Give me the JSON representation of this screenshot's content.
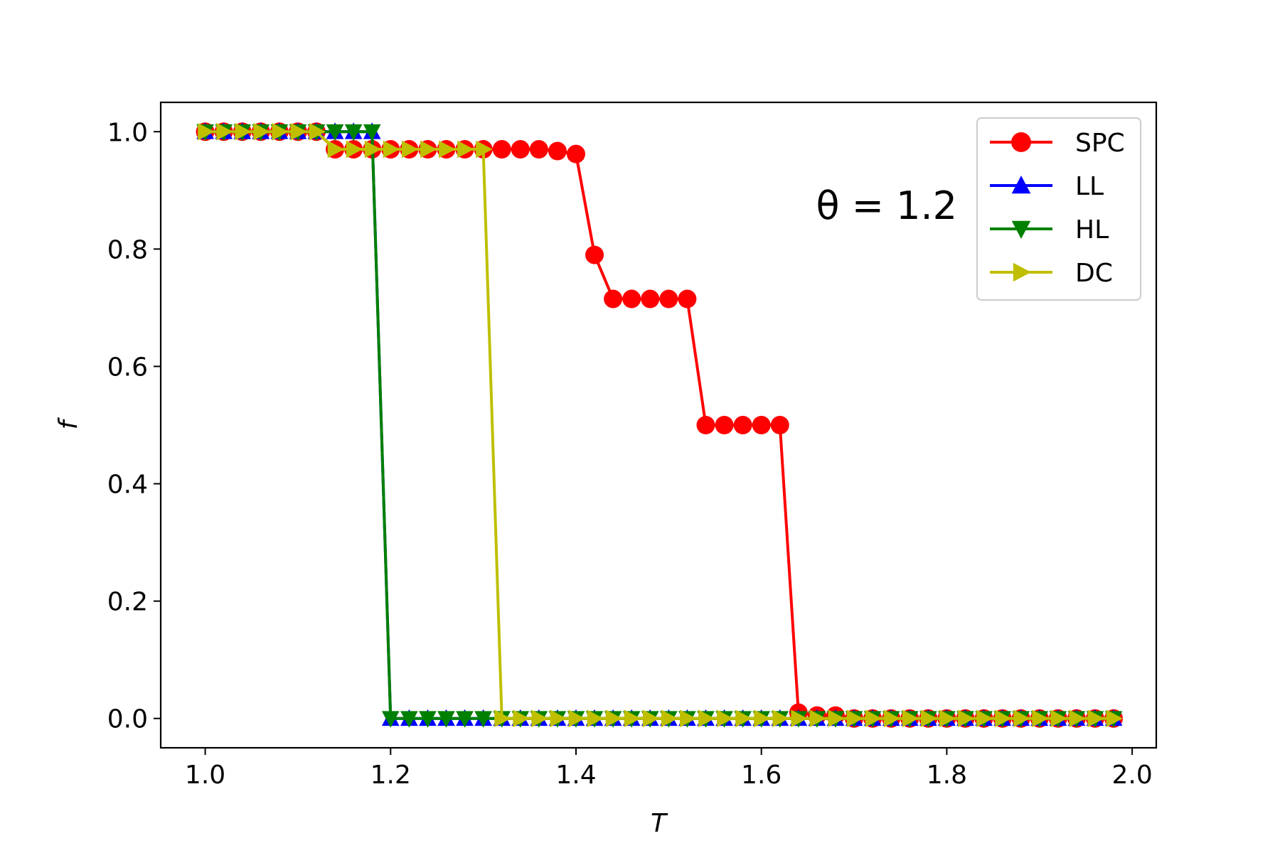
{
  "chart_data": {
    "type": "line",
    "xlabel": "T",
    "ylabel": "f",
    "xlim": [
      0.952,
      2.026
    ],
    "ylim": [
      -0.05,
      1.05
    ],
    "xticks": [
      1.0,
      1.2,
      1.4,
      1.6,
      1.8,
      2.0
    ],
    "xtick_labels": [
      "1.0",
      "1.2",
      "1.4",
      "1.6",
      "1.8",
      "2.0"
    ],
    "yticks": [
      0.0,
      0.2,
      0.4,
      0.6,
      0.8,
      1.0
    ],
    "ytick_labels": [
      "0.0",
      "0.2",
      "0.4",
      "0.6",
      "0.8",
      "1.0"
    ],
    "grid": false,
    "legend_position": "top-right",
    "annotation": "θ = 1.2",
    "series": [
      {
        "name": "SPC",
        "color": "#ff0000",
        "marker": "circle",
        "x": [
          1.0,
          1.02,
          1.04,
          1.06,
          1.08,
          1.1,
          1.12,
          1.14,
          1.16,
          1.18,
          1.2,
          1.22,
          1.24,
          1.26,
          1.28,
          1.3,
          1.32,
          1.34,
          1.36,
          1.38,
          1.4,
          1.42,
          1.44,
          1.46,
          1.48,
          1.5,
          1.52,
          1.54,
          1.56,
          1.58,
          1.6,
          1.62,
          1.64,
          1.66,
          1.68,
          1.7,
          1.72,
          1.74,
          1.76,
          1.78,
          1.8,
          1.82,
          1.84,
          1.86,
          1.88,
          1.9,
          1.92,
          1.94,
          1.96,
          1.98
        ],
        "y": [
          1.0,
          1.0,
          1.0,
          1.0,
          1.0,
          1.0,
          1.0,
          0.97,
          0.97,
          0.97,
          0.97,
          0.97,
          0.97,
          0.97,
          0.97,
          0.97,
          0.97,
          0.97,
          0.97,
          0.967,
          0.962,
          0.79,
          0.715,
          0.715,
          0.715,
          0.715,
          0.715,
          0.5,
          0.5,
          0.5,
          0.5,
          0.5,
          0.01,
          0.005,
          0.005,
          0.0,
          0.0,
          0.0,
          0.0,
          0.0,
          0.0,
          0.0,
          0.0,
          0.0,
          0.0,
          0.0,
          0.0,
          0.0,
          0.0,
          0.0
        ]
      },
      {
        "name": "LL",
        "color": "#0000ff",
        "marker": "triangle-up",
        "x": [
          1.0,
          1.02,
          1.04,
          1.06,
          1.08,
          1.1,
          1.12,
          1.14,
          1.16,
          1.18,
          1.2,
          1.22,
          1.24,
          1.26,
          1.28,
          1.3,
          1.32,
          1.34,
          1.36,
          1.38,
          1.4,
          1.42,
          1.44,
          1.46,
          1.48,
          1.5,
          1.52,
          1.54,
          1.56,
          1.58,
          1.6,
          1.62,
          1.64,
          1.66,
          1.68,
          1.7,
          1.72,
          1.74,
          1.76,
          1.78,
          1.8,
          1.82,
          1.84,
          1.86,
          1.88,
          1.9,
          1.92,
          1.94,
          1.96,
          1.98
        ],
        "y": [
          1.0,
          1.0,
          1.0,
          1.0,
          1.0,
          1.0,
          1.0,
          1.0,
          1.0,
          1.0,
          0.0,
          0.0,
          0.0,
          0.0,
          0.0,
          0.0,
          0.0,
          0.0,
          0.0,
          0.0,
          0.0,
          0.0,
          0.0,
          0.0,
          0.0,
          0.0,
          0.0,
          0.0,
          0.0,
          0.0,
          0.0,
          0.0,
          0.0,
          0.0,
          0.0,
          0.0,
          0.0,
          0.0,
          0.0,
          0.0,
          0.0,
          0.0,
          0.0,
          0.0,
          0.0,
          0.0,
          0.0,
          0.0,
          0.0,
          0.0
        ]
      },
      {
        "name": "HL",
        "color": "#008000",
        "marker": "triangle-down",
        "x": [
          1.0,
          1.02,
          1.04,
          1.06,
          1.08,
          1.1,
          1.12,
          1.14,
          1.16,
          1.18,
          1.2,
          1.22,
          1.24,
          1.26,
          1.28,
          1.3,
          1.32,
          1.34,
          1.36,
          1.38,
          1.4,
          1.42,
          1.44,
          1.46,
          1.48,
          1.5,
          1.52,
          1.54,
          1.56,
          1.58,
          1.6,
          1.62,
          1.64,
          1.66,
          1.68,
          1.7,
          1.72,
          1.74,
          1.76,
          1.78,
          1.8,
          1.82,
          1.84,
          1.86,
          1.88,
          1.9,
          1.92,
          1.94,
          1.96,
          1.98
        ],
        "y": [
          1.0,
          1.0,
          1.0,
          1.0,
          1.0,
          1.0,
          1.0,
          1.0,
          1.0,
          1.0,
          0.0,
          0.0,
          0.0,
          0.0,
          0.0,
          0.0,
          0.0,
          0.0,
          0.0,
          0.0,
          0.0,
          0.0,
          0.0,
          0.0,
          0.0,
          0.0,
          0.0,
          0.0,
          0.0,
          0.0,
          0.0,
          0.0,
          0.0,
          0.0,
          0.0,
          0.0,
          0.0,
          0.0,
          0.0,
          0.0,
          0.0,
          0.0,
          0.0,
          0.0,
          0.0,
          0.0,
          0.0,
          0.0,
          0.0,
          0.0
        ]
      },
      {
        "name": "DC",
        "color": "#bfbf00",
        "marker": "triangle-right",
        "x": [
          1.0,
          1.02,
          1.04,
          1.06,
          1.08,
          1.1,
          1.12,
          1.14,
          1.16,
          1.18,
          1.2,
          1.22,
          1.24,
          1.26,
          1.28,
          1.3,
          1.32,
          1.34,
          1.36,
          1.38,
          1.4,
          1.42,
          1.44,
          1.46,
          1.48,
          1.5,
          1.52,
          1.54,
          1.56,
          1.58,
          1.6,
          1.62,
          1.64,
          1.66,
          1.68,
          1.7,
          1.72,
          1.74,
          1.76,
          1.78,
          1.8,
          1.82,
          1.84,
          1.86,
          1.88,
          1.9,
          1.92,
          1.94,
          1.96,
          1.98
        ],
        "y": [
          1.0,
          1.0,
          1.0,
          1.0,
          1.0,
          1.0,
          1.0,
          0.97,
          0.97,
          0.97,
          0.97,
          0.97,
          0.97,
          0.97,
          0.97,
          0.97,
          0.0,
          0.0,
          0.0,
          0.0,
          0.0,
          0.0,
          0.0,
          0.0,
          0.0,
          0.0,
          0.0,
          0.0,
          0.0,
          0.0,
          0.0,
          0.0,
          0.0,
          0.0,
          0.0,
          0.0,
          0.0,
          0.0,
          0.0,
          0.0,
          0.0,
          0.0,
          0.0,
          0.0,
          0.0,
          0.0,
          0.0,
          0.0,
          0.0,
          0.0
        ]
      }
    ]
  }
}
